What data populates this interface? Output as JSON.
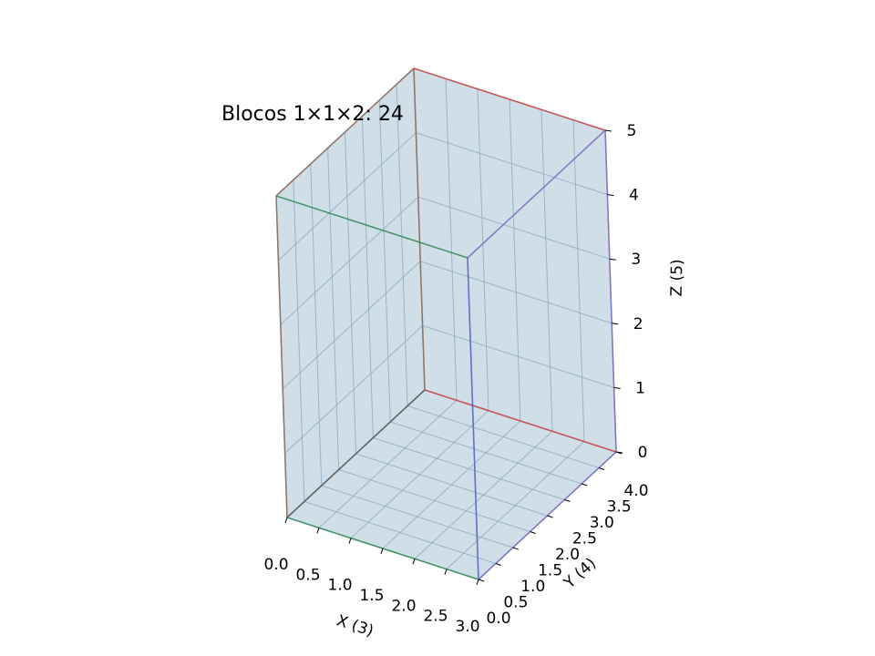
{
  "chart_data": {
    "type": "3d-box",
    "title": "Blocos 1×1×2: 24",
    "xlabel": "X (3)",
    "ylabel": "Y (4)",
    "zlabel": "Z (5)",
    "xlim": [
      0,
      3
    ],
    "ylim": [
      0,
      4
    ],
    "zlim": [
      0,
      5
    ],
    "xticks": [
      "0.0",
      "0.5",
      "1.0",
      "1.5",
      "2.0",
      "2.5",
      "3.0"
    ],
    "yticks": [
      "0.0",
      "0.5",
      "1.0",
      "1.5",
      "2.0",
      "2.5",
      "3.0",
      "3.5",
      "4.0"
    ],
    "zticks": [
      "0",
      "1",
      "2",
      "3",
      "4",
      "5"
    ],
    "grid": true,
    "box": {
      "dims": [
        3,
        4,
        5
      ],
      "face_color": "#a6c3d8"
    },
    "edge_colors": {
      "x": "#2e8b57",
      "y": "#7b68c0",
      "z": "#4a5fc1",
      "top": "#cc4444",
      "back": "#8b6b5a"
    }
  }
}
